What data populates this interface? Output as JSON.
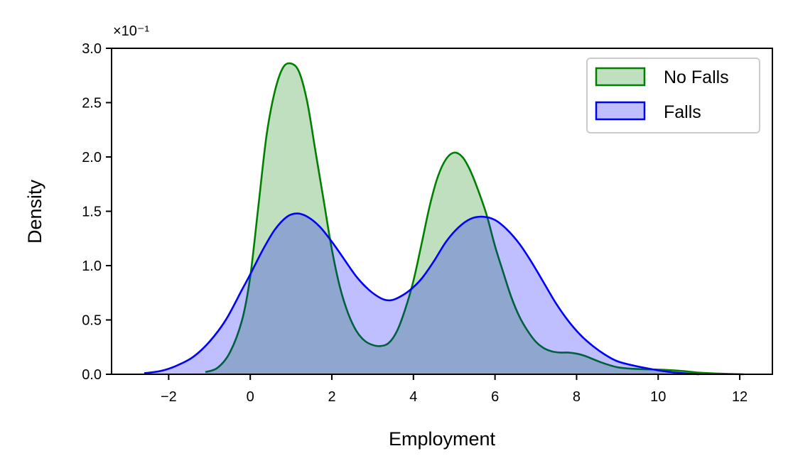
{
  "chart_data": {
    "type": "area",
    "xlabel": "Employment",
    "ylabel": "Density",
    "y_scale_note": "×10⁻¹",
    "xlim": [
      -3.4,
      12.8
    ],
    "ylim": [
      0,
      3.0
    ],
    "x_ticks": [
      -2,
      0,
      2,
      4,
      6,
      8,
      10,
      12
    ],
    "x_tick_labels": [
      "−2",
      "0",
      "2",
      "4",
      "6",
      "8",
      "10",
      "12"
    ],
    "y_ticks": [
      0.0,
      0.5,
      1.0,
      1.5,
      2.0,
      2.5,
      3.0
    ],
    "y_tick_labels": [
      "0.0",
      "0.5",
      "1.0",
      "1.5",
      "2.0",
      "2.5",
      "3.0"
    ],
    "grid": false,
    "legend_position": "top-right",
    "series": [
      {
        "name": "No Falls",
        "line_color": "#008000",
        "fill_color": "#008000",
        "fill_opacity": 0.25,
        "points": [
          [
            -1.1,
            0.02
          ],
          [
            -0.8,
            0.06
          ],
          [
            -0.5,
            0.2
          ],
          [
            -0.2,
            0.5
          ],
          [
            0.0,
            0.9
          ],
          [
            0.2,
            1.55
          ],
          [
            0.4,
            2.2
          ],
          [
            0.6,
            2.6
          ],
          [
            0.8,
            2.82
          ],
          [
            1.0,
            2.86
          ],
          [
            1.2,
            2.78
          ],
          [
            1.4,
            2.5
          ],
          [
            1.6,
            2.05
          ],
          [
            1.8,
            1.6
          ],
          [
            2.0,
            1.15
          ],
          [
            2.2,
            0.8
          ],
          [
            2.4,
            0.56
          ],
          [
            2.6,
            0.4
          ],
          [
            2.8,
            0.31
          ],
          [
            3.0,
            0.27
          ],
          [
            3.2,
            0.26
          ],
          [
            3.4,
            0.29
          ],
          [
            3.6,
            0.4
          ],
          [
            3.8,
            0.6
          ],
          [
            4.0,
            0.86
          ],
          [
            4.2,
            1.2
          ],
          [
            4.4,
            1.55
          ],
          [
            4.6,
            1.82
          ],
          [
            4.8,
            1.98
          ],
          [
            5.0,
            2.04
          ],
          [
            5.2,
            2.0
          ],
          [
            5.4,
            1.87
          ],
          [
            5.6,
            1.68
          ],
          [
            5.8,
            1.46
          ],
          [
            6.0,
            1.18
          ],
          [
            6.2,
            0.94
          ],
          [
            6.4,
            0.71
          ],
          [
            6.6,
            0.53
          ],
          [
            6.8,
            0.4
          ],
          [
            7.0,
            0.3
          ],
          [
            7.2,
            0.24
          ],
          [
            7.4,
            0.21
          ],
          [
            7.6,
            0.2
          ],
          [
            7.8,
            0.2
          ],
          [
            8.0,
            0.19
          ],
          [
            8.2,
            0.17
          ],
          [
            8.6,
            0.11
          ],
          [
            9.0,
            0.065
          ],
          [
            9.4,
            0.05
          ],
          [
            9.8,
            0.045
          ],
          [
            10.2,
            0.04
          ],
          [
            10.6,
            0.03
          ],
          [
            11.0,
            0.015
          ],
          [
            11.5,
            0.006
          ],
          [
            12.1,
            0.0
          ]
        ]
      },
      {
        "name": "Falls",
        "line_color": "#0000ff",
        "fill_color": "#0000ff",
        "fill_opacity": 0.25,
        "points": [
          [
            -2.6,
            0.01
          ],
          [
            -2.2,
            0.03
          ],
          [
            -1.8,
            0.08
          ],
          [
            -1.4,
            0.16
          ],
          [
            -1.0,
            0.3
          ],
          [
            -0.6,
            0.5
          ],
          [
            -0.2,
            0.78
          ],
          [
            0.0,
            0.92
          ],
          [
            0.3,
            1.14
          ],
          [
            0.6,
            1.33
          ],
          [
            0.9,
            1.45
          ],
          [
            1.15,
            1.48
          ],
          [
            1.4,
            1.45
          ],
          [
            1.7,
            1.36
          ],
          [
            2.0,
            1.22
          ],
          [
            2.3,
            1.06
          ],
          [
            2.6,
            0.9
          ],
          [
            2.9,
            0.78
          ],
          [
            3.2,
            0.7
          ],
          [
            3.4,
            0.68
          ],
          [
            3.6,
            0.7
          ],
          [
            3.9,
            0.77
          ],
          [
            4.2,
            0.88
          ],
          [
            4.5,
            1.04
          ],
          [
            4.8,
            1.22
          ],
          [
            5.1,
            1.35
          ],
          [
            5.4,
            1.43
          ],
          [
            5.7,
            1.45
          ],
          [
            6.0,
            1.42
          ],
          [
            6.3,
            1.33
          ],
          [
            6.6,
            1.2
          ],
          [
            6.9,
            1.03
          ],
          [
            7.2,
            0.84
          ],
          [
            7.5,
            0.65
          ],
          [
            7.8,
            0.49
          ],
          [
            8.1,
            0.36
          ],
          [
            8.4,
            0.26
          ],
          [
            8.7,
            0.18
          ],
          [
            9.0,
            0.12
          ],
          [
            9.4,
            0.08
          ],
          [
            9.8,
            0.05
          ],
          [
            10.2,
            0.025
          ],
          [
            10.6,
            0.01
          ],
          [
            11.0,
            0.0
          ]
        ]
      }
    ]
  }
}
